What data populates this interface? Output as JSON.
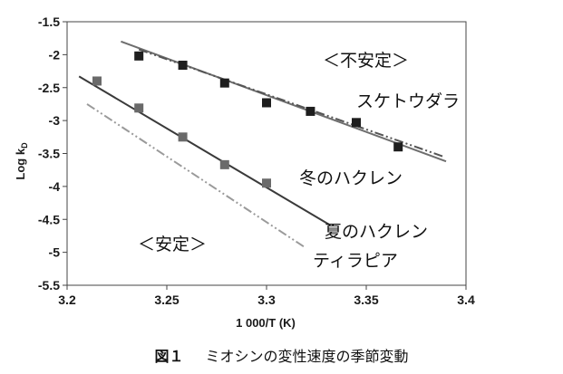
{
  "chart_data": {
    "type": "scatter",
    "title": "",
    "xlabel": "1 000/T (K)",
    "ylabel": "Log k",
    "ylabel_sub": "D",
    "xlim": [
      3.2,
      3.4
    ],
    "ylim": [
      -5.5,
      -1.5
    ],
    "x_ticks": [
      3.2,
      3.25,
      3.3,
      3.35,
      3.4
    ],
    "x_tick_labels": [
      "3.2",
      "3.25",
      "3.3",
      "3.35",
      "3.4"
    ],
    "y_ticks": [
      -1.5,
      -2,
      -2.5,
      -3,
      -3.5,
      -4,
      -4.5,
      -5,
      -5.5
    ],
    "y_tick_labels": [
      "-1.5",
      "-2",
      "-2.5",
      "-3",
      "-3.5",
      "-4",
      "-4.5",
      "-5",
      "-5.5"
    ],
    "grid": false,
    "legend": "none",
    "series": [
      {
        "id": "pollock",
        "label": "スケトウダラ",
        "points": [
          {
            "x": 3.236,
            "y": -2.02
          },
          {
            "x": 3.258,
            "y": -2.16
          },
          {
            "x": 3.279,
            "y": -2.43
          },
          {
            "x": 3.3,
            "y": -2.73
          },
          {
            "x": 3.322,
            "y": -2.86
          },
          {
            "x": 3.345,
            "y": -3.03
          },
          {
            "x": 3.366,
            "y": -3.4
          }
        ],
        "fit": {
          "x": [
            3.227,
            3.39
          ],
          "y": [
            -1.8,
            -3.62
          ]
        },
        "marker_color": "#1e1e1e",
        "line_color": "#6e6e6e",
        "line_style": "solid"
      },
      {
        "id": "pollock_reference",
        "label": "",
        "points": [],
        "fit": {
          "x": [
            3.236,
            3.389
          ],
          "y": [
            -1.92,
            -3.55
          ]
        },
        "line_color": "#555555",
        "line_style": "dash-dot-dot"
      },
      {
        "id": "hakuren_winter",
        "label": "冬のハクレン",
        "points": [
          {
            "x": 3.215,
            "y": -2.4
          },
          {
            "x": 3.236,
            "y": -2.81
          },
          {
            "x": 3.258,
            "y": -3.25
          },
          {
            "x": 3.279,
            "y": -3.67
          },
          {
            "x": 3.3,
            "y": -3.95
          }
        ],
        "marker_color": "#6a6a6a",
        "fit": {
          "x": [
            3.206,
            3.332
          ],
          "y": [
            -2.33,
            -4.59
          ]
        },
        "line_color": "#3a3a3a",
        "line_style": "solid"
      },
      {
        "id": "hakuren_summer",
        "label": "夏のハクレン",
        "points": [],
        "fit": null
      },
      {
        "id": "tilapia",
        "label": "ティラピア",
        "points": [],
        "fit": {
          "x": [
            3.21,
            3.319
          ],
          "y": [
            -2.75,
            -4.92
          ]
        },
        "line_color": "#9a9a9a",
        "line_style": "dash-dot-dot"
      }
    ],
    "annotations": [
      {
        "id": "unstable",
        "text": "＜不安定＞"
      },
      {
        "id": "stable",
        "text": "＜安定＞"
      }
    ]
  },
  "caption": {
    "figure_number": "図１",
    "text": "ミオシンの変性速度の季節変動"
  }
}
